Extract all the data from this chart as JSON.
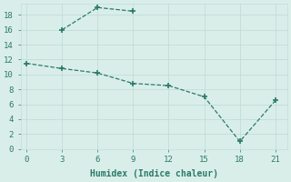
{
  "line1_x": [
    3,
    6,
    9
  ],
  "line1_y": [
    16,
    19,
    18.5
  ],
  "line2_x": [
    0,
    3,
    6,
    9,
    12,
    15,
    18,
    21
  ],
  "line2_y": [
    11.5,
    10.8,
    10.2,
    8.8,
    8.5,
    7.0,
    1.0,
    6.5
  ],
  "line_color": "#2a7a6a",
  "marker": "+",
  "markersize": 4,
  "markeredgewidth": 1.2,
  "linewidth": 0.9,
  "linestyle": "--",
  "xlabel": "Humidex (Indice chaleur)",
  "xlabel_fontsize": 7,
  "xlabel_fontfamily": "monospace",
  "xlabel_fontweight": "bold",
  "xlim": [
    -0.5,
    22
  ],
  "ylim": [
    0,
    19.5
  ],
  "xticks": [
    0,
    3,
    6,
    9,
    12,
    15,
    18,
    21
  ],
  "yticks": [
    0,
    2,
    4,
    6,
    8,
    10,
    12,
    14,
    16,
    18
  ],
  "grid_color": "#c0ddd8",
  "bg_color": "#daeee9",
  "tick_fontsize": 6.5,
  "tick_fontfamily": "monospace",
  "tick_color": "#2a7a6a"
}
